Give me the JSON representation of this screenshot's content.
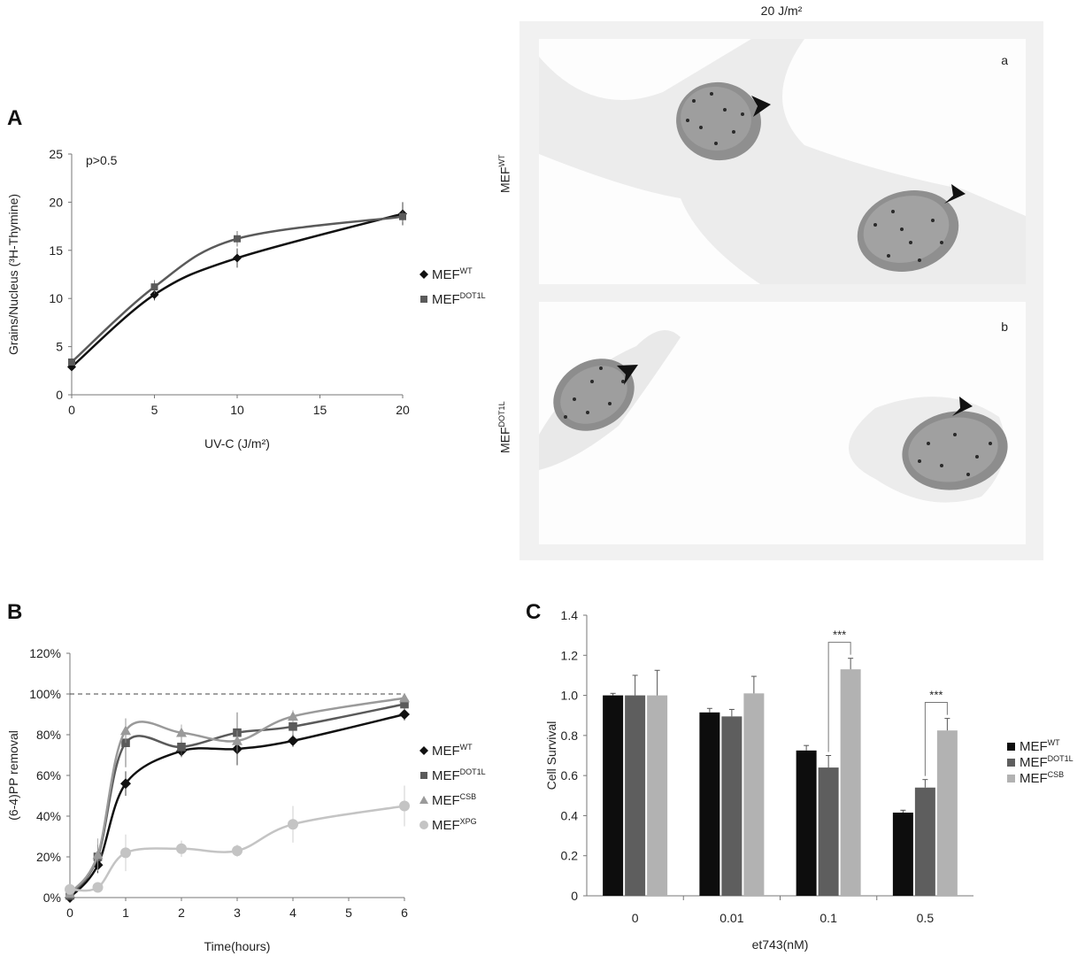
{
  "panels": {
    "a": {
      "letter": "A"
    },
    "b": {
      "letter": "B"
    },
    "c": {
      "letter": "C"
    }
  },
  "micrograph": {
    "title": "20 J/m²",
    "row_a_letter": "a",
    "row_b_letter": "b",
    "row_a_label": "MEF",
    "row_a_label_sup": "WT",
    "row_b_label": "MEF",
    "row_b_label_sup": "DOT1L"
  },
  "chart_data": [
    {
      "type": "line",
      "panel": "A",
      "title": "",
      "xlabel": "UV-C (J/m²)",
      "ylabel": "Grains/Nucleus (³H-Thymine)",
      "annotation": "p>0.5",
      "x": [
        0,
        5,
        10,
        20
      ],
      "xticks": [
        "0",
        "5",
        "10",
        "15",
        "20"
      ],
      "yticks": [
        "0",
        "5",
        "10",
        "15",
        "20",
        "25"
      ],
      "xlim": [
        0,
        20
      ],
      "ylim": [
        0,
        25
      ],
      "legend_position": "right",
      "series": [
        {
          "name": "MEF",
          "sup": "WT",
          "marker": "diamond",
          "color": "#111111",
          "values": [
            2.9,
            10.4,
            14.2,
            18.8
          ],
          "err": [
            0.3,
            0.6,
            1.0,
            1.2
          ]
        },
        {
          "name": "MEF",
          "sup": "DOT1L",
          "marker": "square",
          "color": "#5a5a5a",
          "values": [
            3.4,
            11.2,
            16.2,
            18.5
          ],
          "err": [
            0.3,
            0.7,
            0.8,
            0.6
          ]
        }
      ]
    },
    {
      "type": "line",
      "panel": "B",
      "title": "",
      "xlabel": "Time(hours)",
      "ylabel": "(6-4)PP removal",
      "x": [
        0,
        0.5,
        1,
        2,
        3,
        4,
        6
      ],
      "xticks": [
        "0",
        "1",
        "2",
        "3",
        "4",
        "5",
        "6"
      ],
      "yticks": [
        "0%",
        "20%",
        "40%",
        "60%",
        "80%",
        "100%",
        "120%"
      ],
      "xlim": [
        0,
        6
      ],
      "ylim": [
        0,
        120
      ],
      "reference_line": 100,
      "legend_position": "right",
      "series": [
        {
          "name": "MEF",
          "sup": "WT",
          "marker": "diamond",
          "color": "#111111",
          "values": [
            0,
            16,
            56,
            72,
            73,
            77,
            90
          ],
          "err": [
            1,
            4,
            6,
            3,
            8,
            3,
            3
          ]
        },
        {
          "name": "MEF",
          "sup": "DOT1L",
          "marker": "square",
          "color": "#5a5a5a",
          "values": [
            1,
            20,
            76,
            74,
            81,
            84,
            95
          ],
          "err": [
            1,
            6,
            12,
            5,
            10,
            4,
            3
          ]
        },
        {
          "name": "MEF",
          "sup": "CSB",
          "marker": "triangle",
          "color": "#9a9a9a",
          "values": [
            2,
            21,
            82,
            81,
            77,
            89,
            98
          ],
          "err": [
            1,
            8,
            6,
            4,
            5,
            3,
            2
          ]
        },
        {
          "name": "MEF",
          "sup": "XPG",
          "marker": "circle",
          "color": "#c4c4c4",
          "values": [
            4,
            5,
            22,
            24,
            23,
            36,
            45
          ],
          "err": [
            2,
            2,
            9,
            4,
            3,
            9,
            10
          ]
        }
      ]
    },
    {
      "type": "bar",
      "panel": "C",
      "title": "",
      "xlabel": "et743(nM)",
      "ylabel": "Cell Survival",
      "categories": [
        "0",
        "0.01",
        "0.1",
        "0.5"
      ],
      "yticks": [
        "0",
        "0.2",
        "0.4",
        "0.6",
        "0.8",
        "1.0",
        "1.2",
        "1.4"
      ],
      "ylim": [
        0,
        1.4
      ],
      "legend_position": "right",
      "series": [
        {
          "name": "MEF",
          "sup": "WT",
          "color": "#0d0d0d",
          "values": [
            1.0,
            0.915,
            0.725,
            0.415
          ],
          "err": [
            0.01,
            0.02,
            0.025,
            0.012
          ]
        },
        {
          "name": "MEF",
          "sup": "DOT1L",
          "color": "#5e5e5e",
          "values": [
            1.0,
            0.895,
            0.64,
            0.54
          ],
          "err": [
            0.1,
            0.035,
            0.06,
            0.04
          ]
        },
        {
          "name": "MEF",
          "sup": "CSB",
          "color": "#b2b2b2",
          "values": [
            1.0,
            1.01,
            1.13,
            0.825
          ],
          "err": [
            0.125,
            0.085,
            0.055,
            0.06
          ]
        }
      ],
      "significance": [
        {
          "category": "0.1",
          "label": "***",
          "between": [
            "DOT1L",
            "CSB"
          ]
        },
        {
          "category": "0.5",
          "label": "***",
          "between": [
            "DOT1L",
            "CSB"
          ]
        }
      ]
    }
  ]
}
